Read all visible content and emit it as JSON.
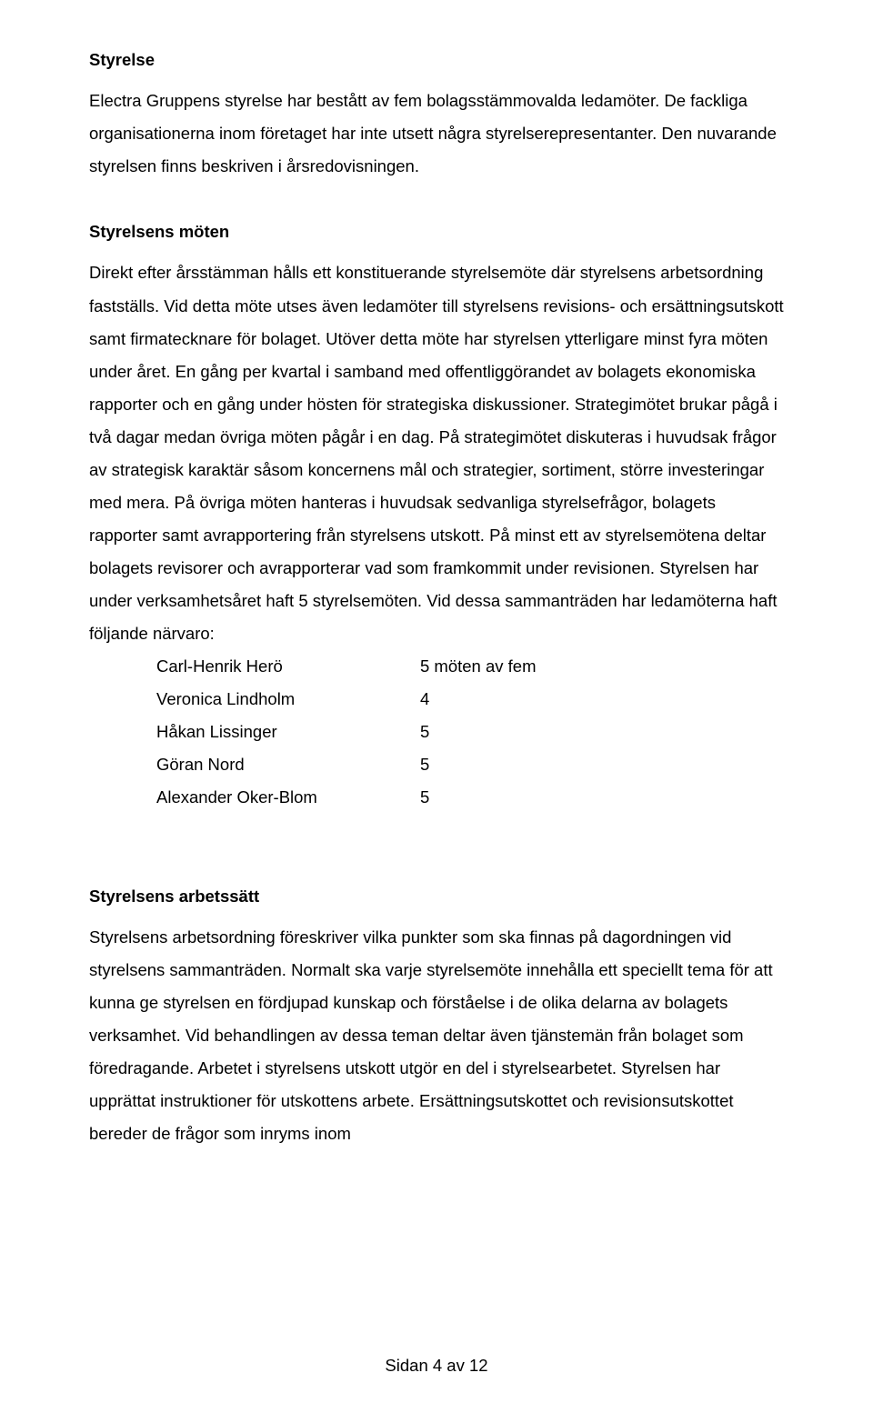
{
  "section1": {
    "heading": "Styrelse",
    "para": "Electra Gruppens styrelse har bestått av fem bolagsstämmovalda ledamöter. De fackliga organisationerna inom företaget har inte utsett några styrelserepresentanter. Den nuvarande styrelsen finns beskriven i årsredovisningen."
  },
  "section2": {
    "heading": "Styrelsens möten",
    "para": "Direkt efter årsstämman hålls ett konstituerande styrelsemöte där styrelsens arbetsordning fastställs. Vid detta möte utses även ledamöter till styrelsens revisions- och ersättningsutskott samt firmatecknare för bolaget. Utöver detta möte har styrelsen ytterligare minst fyra möten under året. En gång per kvartal i samband med offentliggörandet av bolagets ekonomiska rapporter och en gång under hösten för strategiska diskussioner. Strategimötet brukar pågå i två dagar medan övriga möten pågår i en dag. På strategimötet diskuteras i huvudsak frågor av strategisk karaktär såsom koncernens mål och strategier, sortiment, större investeringar med mera. På övriga möten hanteras i huvudsak sedvanliga styrelsefrågor, bolagets rapporter samt avrapportering från styrelsens utskott. På minst ett av styrelsemötena deltar bolagets revisorer och avrapporterar vad som framkommit under revisionen. Styrelsen har under verksamhetsåret haft 5 styrelsemöten. Vid dessa sammanträden har ledamöterna haft följande närvaro:"
  },
  "attendance": [
    {
      "name": "Carl-Henrik Herö",
      "value": "5 möten av fem"
    },
    {
      "name": "Veronica Lindholm",
      "value": "4"
    },
    {
      "name": "Håkan Lissinger",
      "value": "5"
    },
    {
      "name": "Göran Nord",
      "value": "5"
    },
    {
      "name": "Alexander Oker-Blom",
      "value": "5"
    }
  ],
  "section3": {
    "heading": "Styrelsens arbetssätt",
    "para": "Styrelsens arbetsordning föreskriver vilka punkter som ska finnas på dagordningen vid styrelsens sammanträden. Normalt ska varje styrelsemöte innehålla ett speciellt tema för att kunna ge styrelsen en fördjupad kunskap och förståelse i de olika delarna av bolagets verksamhet. Vid behandlingen av dessa teman deltar även tjänstemän från bolaget som föredragande. Arbetet i styrelsens utskott utgör en del i styrelsearbetet. Styrelsen har upprättat instruktioner för utskottens arbete. Ersättningsutskottet och revisionsutskottet bereder de frågor som inryms inom"
  },
  "footer": "Sidan 4 av 12"
}
